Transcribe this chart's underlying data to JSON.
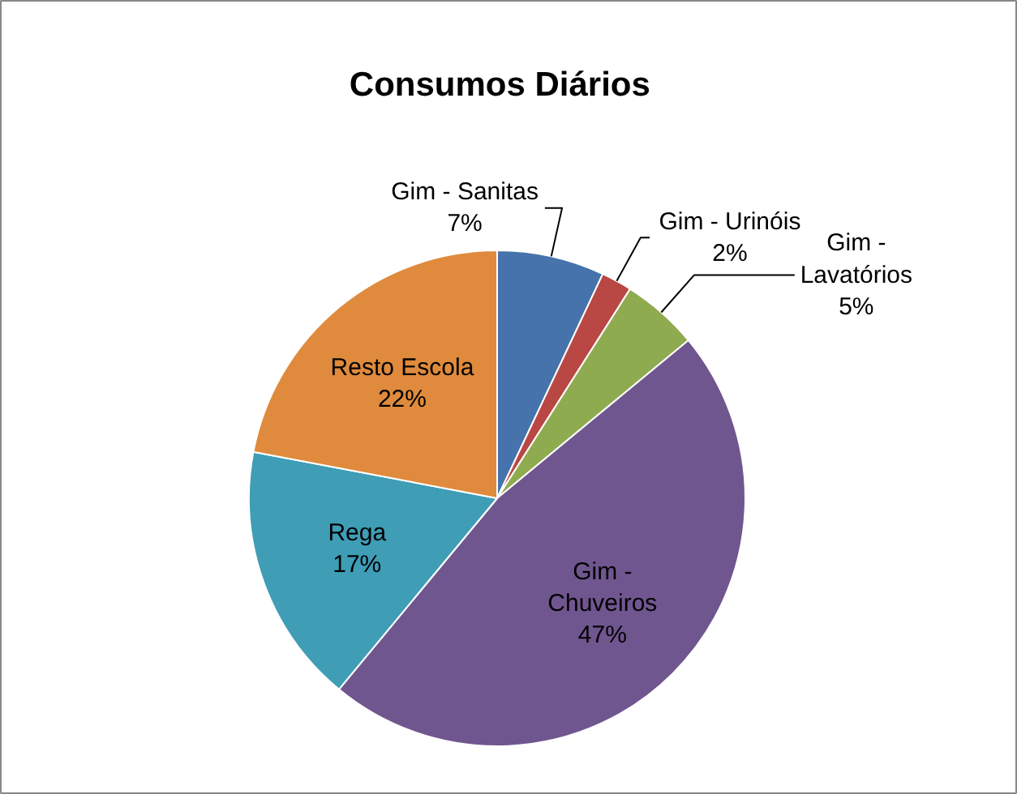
{
  "chart_data": {
    "type": "pie",
    "title": "Consumos   Diários",
    "categories": [
      "Gim - Sanitas",
      "Gim - Urinóis",
      "Gim - Lavatórios",
      "Gim - Chuveiros",
      "Rega",
      "Resto Escola"
    ],
    "values": [
      7,
      2,
      5,
      47,
      17,
      22
    ],
    "value_labels": [
      "7%",
      "2%",
      "5%",
      "47%",
      "17%",
      "22%"
    ],
    "colors": [
      "#4673ab",
      "#b94743",
      "#8fab50",
      "#70568f",
      "#3f9db6",
      "#df8a3c"
    ]
  }
}
